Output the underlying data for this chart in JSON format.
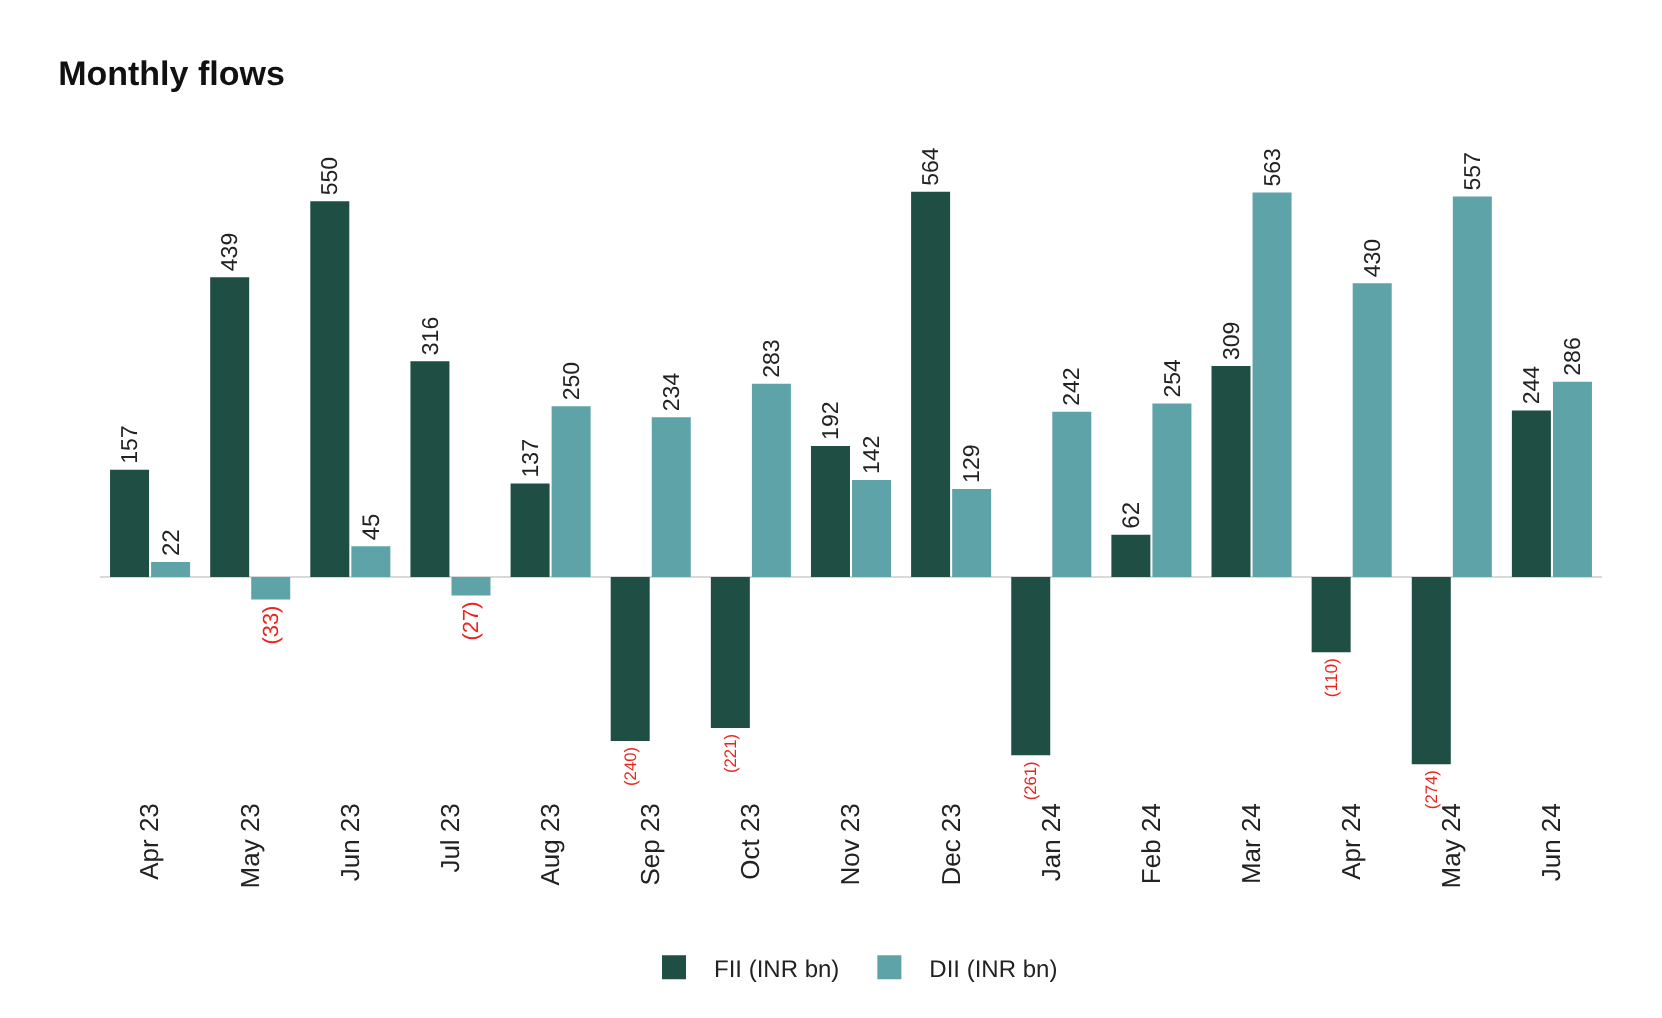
{
  "chart_data": {
    "type": "bar",
    "title": "Monthly flows",
    "categories": [
      "Apr 23",
      "May 23",
      "Jun 23",
      "Jul 23",
      "Aug 23",
      "Sep 23",
      "Oct 23",
      "Nov 23",
      "Dec 23",
      "Jan 24",
      "Feb 24",
      "Mar 24",
      "Apr 24",
      "May 24",
      "Jun 24"
    ],
    "series": [
      {
        "name": "FII (INR bn)",
        "color": "#1f4e45",
        "values": [
          157,
          439,
          550,
          316,
          137,
          -240,
          -221,
          192,
          564,
          -261,
          62,
          309,
          -110,
          -274,
          244
        ],
        "value_labels": [
          "157",
          "439",
          "550",
          "316",
          "137",
          "(240)",
          "(221)",
          "192",
          "564",
          "(261)",
          "62",
          "309",
          "(110)",
          "(274)",
          "244"
        ]
      },
      {
        "name": "DII (INR bn)",
        "color": "#5ea3a8",
        "values": [
          22,
          -33,
          45,
          -27,
          250,
          234,
          283,
          142,
          129,
          242,
          254,
          563,
          430,
          557,
          286
        ],
        "value_labels": [
          "22",
          "(33)",
          "45",
          "(27)",
          "250",
          "234",
          "283",
          "142",
          "129",
          "242",
          "254",
          "563",
          "430",
          "557",
          "286"
        ]
      }
    ],
    "grid": false,
    "legend": "bottom",
    "tick_labels": "x"
  }
}
